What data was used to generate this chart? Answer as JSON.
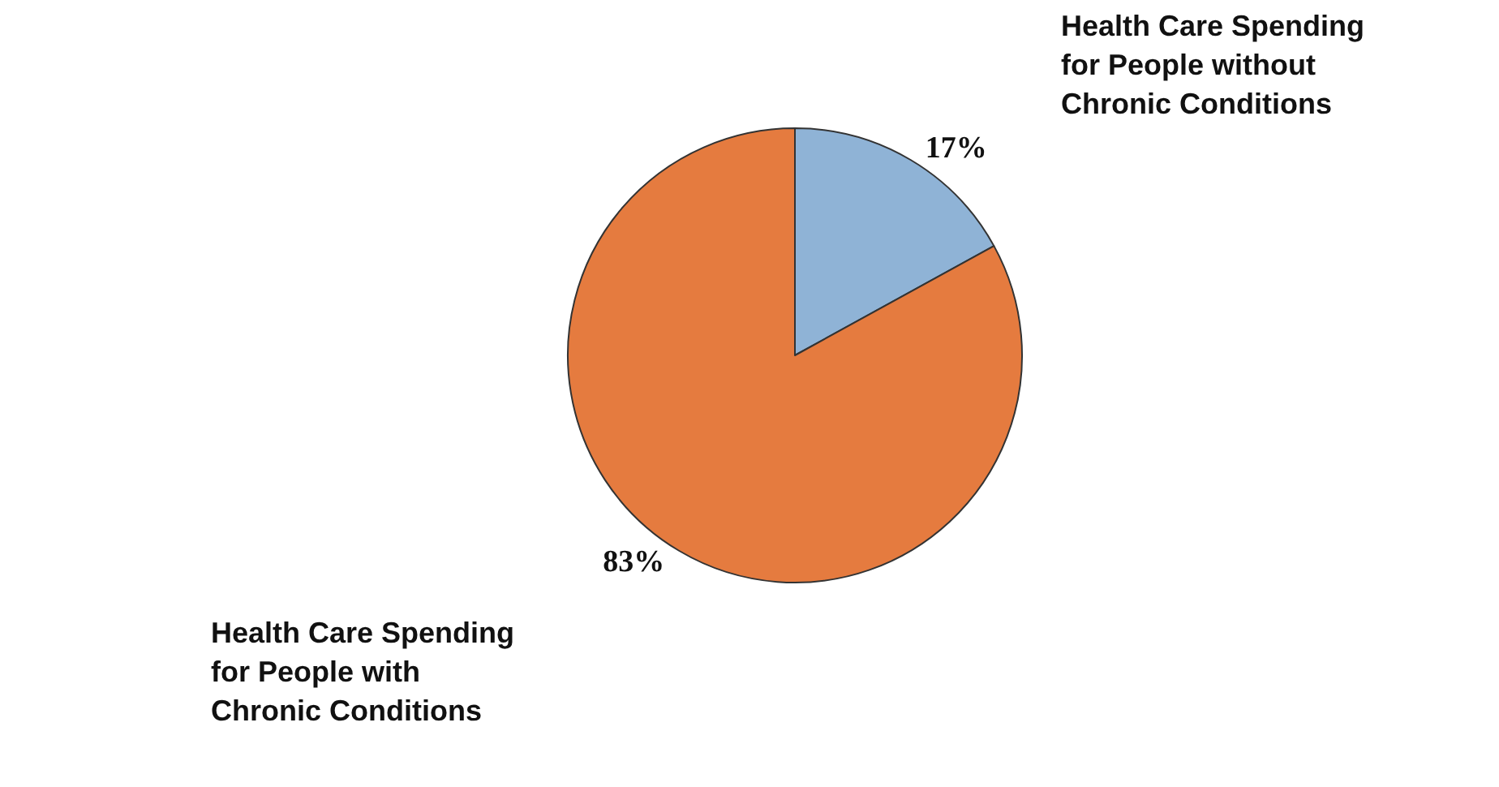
{
  "chart_data": {
    "type": "pie",
    "categories": [
      "Health Care Spending for People without Chronic Conditions",
      "Health Care Spending for People with Chronic Conditions"
    ],
    "values": [
      17,
      83
    ],
    "value_labels": [
      "17%",
      "83%"
    ],
    "colors": [
      "#8fb3d6",
      "#e57b3f"
    ],
    "legend": false
  }
}
